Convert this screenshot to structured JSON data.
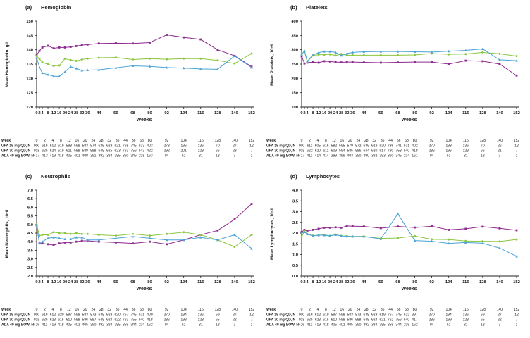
{
  "figure": {
    "background": "#ffffff",
    "axis_color": "#222222"
  },
  "chart_data": [
    {
      "type": "line",
      "panel_label": "(a)",
      "title": "Hemoglobin",
      "xlabel": "Weeks",
      "ylabel": "Mean Hemoglobin, g/L",
      "xlim": [
        0,
        152
      ],
      "ylim": [
        120,
        150
      ],
      "ytick_step": 5,
      "ytick_decimals": 0,
      "grid": false,
      "legend": "none",
      "x_ticks": [
        0,
        2,
        4,
        8,
        12,
        16,
        20,
        24,
        28,
        32,
        36,
        44,
        56,
        68,
        80,
        92,
        104,
        116,
        128,
        140,
        152
      ],
      "series": [
        {
          "name": "UPA 15 mg QD",
          "color": "#8E2A8E",
          "marker": "square",
          "values": [
            138.2,
            139.6,
            140.8,
            141.4,
            140.5,
            140.8,
            140.8,
            141.0,
            141.3,
            141.6,
            141.8,
            142.2,
            142.3,
            142.2,
            142.5,
            145.2,
            144.3,
            143.6,
            140.0,
            137.9,
            134.1
          ]
        },
        {
          "name": "UPA 30 mg QD",
          "color": "#8CC63F",
          "marker": "circle",
          "values": [
            137.8,
            136.8,
            135.6,
            134.9,
            134.4,
            134.5,
            136.9,
            136.4,
            136.1,
            136.6,
            136.9,
            137.2,
            137.3,
            136.6,
            136.9,
            136.7,
            136.9,
            136.9,
            136.3,
            135.2,
            138.7
          ]
        },
        {
          "name": "ADA 40 mg EOW",
          "color": "#4BA3D6",
          "marker": "triangle",
          "values": [
            137.2,
            133.9,
            131.9,
            131.3,
            130.8,
            130.7,
            132.3,
            134.1,
            133.5,
            132.8,
            132.9,
            133.0,
            133.7,
            134.4,
            134.2,
            133.8,
            133.6,
            133.3,
            133.2,
            137.8,
            133.8
          ]
        }
      ],
      "table": {
        "row_labels": [
          "Week",
          "UPA 15 mg QD, N",
          "UPA 30 mg QD, N",
          "ADA 40 mg EOW, N"
        ],
        "rows": [
          [
            0,
            2,
            4,
            8,
            12,
            16,
            20,
            24,
            28,
            32,
            36,
            44,
            56,
            68,
            80,
            92,
            104,
            116,
            128,
            140,
            152
          ],
          [
            900,
            616,
            612,
            619,
            598,
            598,
            583,
            574,
            638,
            623,
            621,
            768,
            745,
            533,
            403,
            273,
            196,
            136,
            70,
            27,
            12
          ],
          [
            918,
            625,
            624,
            619,
            611,
            588,
            588,
            588,
            648,
            625,
            623,
            763,
            756,
            543,
            422,
            292,
            201,
            128,
            66,
            23,
            7
          ],
          [
            427,
            413,
            419,
            418,
            405,
            401,
            408,
            391,
            392,
            384,
            385,
            360,
            346,
            238,
            163,
            94,
            52,
            31,
            13,
            3,
            1
          ]
        ]
      }
    },
    {
      "type": "line",
      "panel_label": "(b)",
      "title": "Platelets",
      "xlabel": "Weeks",
      "ylabel": "Mean Platelets, 10⁹/L",
      "xlim": [
        0,
        152
      ],
      "ylim": [
        100,
        400
      ],
      "ytick_step": 50,
      "ytick_decimals": 0,
      "grid": false,
      "legend": "none",
      "x_ticks": [
        0,
        2,
        4,
        8,
        12,
        16,
        20,
        24,
        28,
        32,
        36,
        44,
        56,
        68,
        80,
        92,
        104,
        116,
        128,
        140,
        152
      ],
      "series": [
        {
          "name": "UPA 15 mg QD",
          "color": "#8E2A8E",
          "marker": "square",
          "values": [
            277,
            252,
            255,
            257,
            255,
            260,
            259,
            257,
            256,
            257,
            257,
            256,
            255,
            256,
            257,
            257,
            250,
            262,
            260,
            250,
            210
          ]
        },
        {
          "name": "UPA 30 mg QD",
          "color": "#8CC63F",
          "marker": "circle",
          "values": [
            285,
            295,
            258,
            280,
            283,
            283,
            284,
            280,
            285,
            281,
            281,
            281,
            281,
            281,
            282,
            287,
            284,
            285,
            291,
            286,
            278
          ]
        },
        {
          "name": "ADA 40 mg EOW",
          "color": "#4BA3D6",
          "marker": "triangle",
          "values": [
            283,
            296,
            260,
            282,
            290,
            294,
            294,
            291,
            280,
            287,
            291,
            293,
            294,
            294,
            293,
            292,
            295,
            298,
            303,
            265,
            262
          ]
        }
      ],
      "table": {
        "row_labels": [
          "Week",
          "UPA 15 mg QD, N",
          "UPA 30 mg QD, N",
          "ADA 40 mg EOW, N"
        ],
        "rows": [
          [
            0,
            2,
            4,
            8,
            12,
            16,
            20,
            24,
            28,
            32,
            36,
            44,
            56,
            68,
            80,
            92,
            104,
            116,
            128,
            140,
            152
          ],
          [
            900,
            611,
            605,
            616,
            582,
            595,
            579,
            572,
            636,
            619,
            620,
            786,
            741,
            531,
            402,
            270,
            193,
            136,
            70,
            26,
            12
          ],
          [
            918,
            622,
            620,
            611,
            609,
            594,
            585,
            586,
            644,
            620,
            617,
            780,
            753,
            540,
            418,
            286,
            196,
            128,
            66,
            21,
            7
          ],
          [
            427,
            411,
            414,
            414,
            399,
            399,
            403,
            390,
            390,
            382,
            383,
            360,
            345,
            234,
            161,
            94,
            51,
            31,
            13,
            3,
            1
          ]
        ]
      }
    },
    {
      "type": "line",
      "panel_label": "(c)",
      "title": "Neutrophils",
      "xlabel": "Weeks",
      "ylabel": "Mean Neutrophils, 10⁹/L",
      "xlim": [
        0,
        152
      ],
      "ylim": [
        2.0,
        7.0
      ],
      "ytick_step": 0.5,
      "ytick_decimals": 1,
      "grid": false,
      "legend": "none",
      "x_ticks": [
        0,
        2,
        4,
        8,
        12,
        16,
        20,
        24,
        28,
        32,
        36,
        44,
        56,
        68,
        80,
        92,
        104,
        116,
        128,
        140,
        152
      ],
      "series": [
        {
          "name": "UPA 15 mg QD",
          "color": "#8E2A8E",
          "marker": "square",
          "values": [
            4.95,
            3.9,
            3.9,
            3.85,
            3.8,
            3.9,
            3.95,
            3.95,
            4.0,
            4.05,
            4.05,
            4.0,
            3.95,
            3.9,
            4.0,
            3.85,
            4.1,
            4.4,
            4.65,
            5.3,
            6.2
          ]
        },
        {
          "name": "UPA 30 mg QD",
          "color": "#8CC63F",
          "marker": "circle",
          "values": [
            5.0,
            4.35,
            4.4,
            4.4,
            4.55,
            4.5,
            4.5,
            4.45,
            4.5,
            4.45,
            4.45,
            4.4,
            4.35,
            4.45,
            4.35,
            4.45,
            4.55,
            4.4,
            4.1,
            3.7,
            4.4
          ]
        },
        {
          "name": "ADA 40 mg EOW",
          "color": "#4BA3D6",
          "marker": "triangle",
          "values": [
            4.95,
            3.95,
            4.0,
            4.2,
            4.25,
            4.2,
            4.15,
            4.15,
            4.25,
            4.25,
            4.1,
            4.1,
            4.2,
            4.3,
            4.2,
            4.1,
            4.1,
            4.25,
            4.1,
            4.4,
            3.6
          ]
        }
      ],
      "table": {
        "row_labels": [
          "Week",
          "UPA 15 mg QD, N",
          "UPA 30 mg QD, N",
          "ADA 40 mg EOW, N"
        ],
        "rows": [
          [
            0,
            2,
            4,
            8,
            12,
            16,
            20,
            24,
            28,
            32,
            36,
            44,
            56,
            68,
            80,
            92,
            104,
            116,
            128,
            140,
            152
          ],
          [
            900,
            616,
            612,
            620,
            597,
            598,
            583,
            573,
            638,
            623,
            620,
            767,
            745,
            531,
            400,
            270,
            194,
            136,
            69,
            27,
            12
          ],
          [
            918,
            625,
            623,
            615,
            610,
            588,
            586,
            587,
            648,
            624,
            622,
            763,
            755,
            540,
            418,
            286,
            198,
            128,
            65,
            22,
            7
          ],
          [
            426,
            411,
            419,
            418,
            405,
            401,
            405,
            390,
            392,
            384,
            385,
            359,
            344,
            234,
            162,
            94,
            52,
            31,
            13,
            3,
            1
          ]
        ]
      }
    },
    {
      "type": "line",
      "panel_label": "(d)",
      "title": "Lymphocytes",
      "xlabel": "Weeks",
      "ylabel": "Mean Lymphocytes, 10⁹/L",
      "xlim": [
        0,
        152
      ],
      "ylim": [
        0.0,
        4.0
      ],
      "ytick_step": 0.5,
      "ytick_decimals": 1,
      "grid": false,
      "legend": "none",
      "x_ticks": [
        0,
        2,
        4,
        8,
        12,
        16,
        20,
        24,
        28,
        32,
        36,
        44,
        56,
        68,
        80,
        92,
        104,
        116,
        128,
        140,
        152
      ],
      "series": [
        {
          "name": "UPA 15 mg QD",
          "color": "#8E2A8E",
          "marker": "square",
          "values": [
            2.05,
            2.15,
            2.1,
            2.15,
            2.2,
            2.25,
            2.25,
            2.27,
            2.25,
            2.33,
            2.32,
            2.31,
            2.23,
            2.31,
            2.26,
            2.32,
            2.15,
            2.2,
            2.3,
            2.22,
            2.13
          ]
        },
        {
          "name": "UPA 30 mg QD",
          "color": "#8CC63F",
          "marker": "circle",
          "values": [
            1.82,
            2.1,
            1.95,
            1.88,
            1.9,
            1.92,
            1.87,
            1.93,
            1.87,
            1.86,
            1.84,
            1.85,
            1.75,
            1.77,
            1.86,
            1.71,
            1.7,
            1.63,
            1.62,
            1.61,
            1.7
          ]
        },
        {
          "name": "ADA 40 mg EOW",
          "color": "#4BA3D6",
          "marker": "triangle",
          "values": [
            2.0,
            2.05,
            1.95,
            1.87,
            1.9,
            1.9,
            1.87,
            1.92,
            1.87,
            1.85,
            1.84,
            1.84,
            1.73,
            2.9,
            1.65,
            1.62,
            1.52,
            1.56,
            1.53,
            1.3,
            0.92
          ]
        }
      ],
      "table": {
        "row_labels": [
          "Week",
          "UPA 15 mg QD, N",
          "UPA 30 mg QD, N",
          "ADA 40 mg EOW, N"
        ],
        "rows": [
          [
            0,
            2,
            4,
            8,
            12,
            16,
            20,
            24,
            28,
            32,
            36,
            44,
            56,
            68,
            80,
            92,
            104,
            116,
            128,
            140,
            152
          ],
          [
            900,
            616,
            612,
            619,
            597,
            598,
            583,
            573,
            638,
            623,
            619,
            767,
            745,
            532,
            397,
            270,
            194,
            136,
            69,
            27,
            12
          ],
          [
            918,
            625,
            623,
            615,
            610,
            598,
            586,
            588,
            648,
            624,
            621,
            762,
            756,
            540,
            417,
            286,
            199,
            128,
            65,
            22,
            7
          ],
          [
            426,
            411,
            419,
            418,
            405,
            401,
            405,
            390,
            392,
            384,
            385,
            359,
            344,
            235,
            162,
            94,
            52,
            31,
            13,
            3,
            1
          ]
        ]
      }
    }
  ]
}
